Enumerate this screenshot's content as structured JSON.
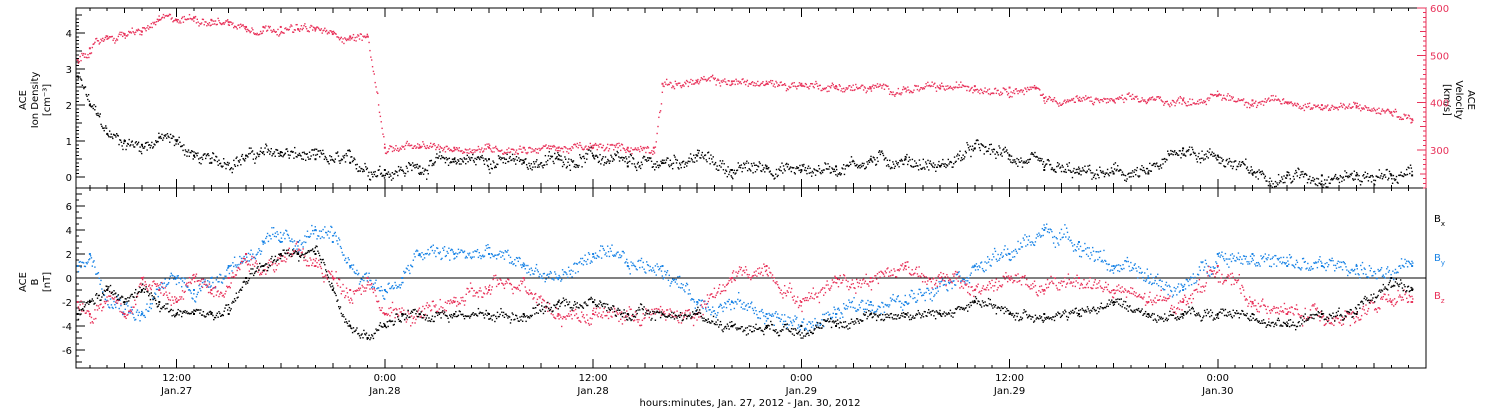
{
  "xaxis": {
    "title": "hours:minutes, Jan. 27, 2012 - Jan. 30, 2012",
    "ticks": [
      {
        "time": "12:00",
        "date": "Jan.27",
        "hours": 12
      },
      {
        "time": "0:00",
        "date": "Jan.28",
        "hours": 24
      },
      {
        "time": "12:00",
        "date": "Jan.28",
        "hours": 36
      },
      {
        "time": "0:00",
        "date": "Jan.29",
        "hours": 48
      },
      {
        "time": "12:00",
        "date": "Jan.29",
        "hours": 60
      },
      {
        "time": "0:00",
        "date": "Jan.30",
        "hours": 72
      }
    ],
    "range_hours": [
      6.2,
      84.0
    ]
  },
  "top_panel": {
    "ylabel_left": [
      "ACE",
      "Ion Density",
      "[cm⁻³]"
    ],
    "ylabel_right": [
      "ACE",
      "Velocity",
      "[km/s]"
    ],
    "left_ylim": [
      -0.3,
      4.7
    ],
    "left_ticks": [
      "0",
      "1",
      "2",
      "3",
      "4"
    ],
    "right_ylim": [
      220,
      600
    ],
    "right_ticks": [
      "300",
      "400",
      "500",
      "600"
    ],
    "colors": {
      "density": "#000000",
      "velocity": "#e8325a"
    }
  },
  "bottom_panel": {
    "ylabel": [
      "ACE",
      "B",
      "[nT]"
    ],
    "ylim": [
      -7.5,
      7.5
    ],
    "ticks": [
      "-6",
      "-4",
      "-2",
      "0",
      "2",
      "4",
      "6"
    ],
    "legend": [
      {
        "name": "B",
        "sub": "x",
        "color": "#000000"
      },
      {
        "name": "B",
        "sub": "y",
        "color": "#1a84e6"
      },
      {
        "name": "B",
        "sub": "z",
        "color": "#e8325a"
      }
    ]
  },
  "chart_data": [
    {
      "type": "scatter",
      "title": "",
      "xlabel": "hours:minutes, Jan. 27, 2012 - Jan. 30, 2012",
      "ylabel": "ACE Ion Density [cm⁻³]",
      "y2label": "ACE Velocity [km/s]",
      "series": [
        {
          "name": "Ion Density",
          "axis": "left",
          "x": [
            6.3,
            7,
            8,
            9,
            10,
            11,
            12,
            13,
            14,
            16,
            18,
            20,
            22,
            24,
            26,
            28,
            30,
            32,
            34,
            36,
            38,
            40,
            42,
            44,
            46,
            48,
            50,
            52,
            54,
            56,
            58,
            60,
            62,
            64,
            66,
            68,
            70,
            72,
            74,
            76,
            78,
            80,
            82,
            83.2
          ],
          "y": [
            2.8,
            2.0,
            1.2,
            1.0,
            0.9,
            1.1,
            1.0,
            0.6,
            0.4,
            0.6,
            0.7,
            0.5,
            0.4,
            0.2,
            0.3,
            0.5,
            0.5,
            0.4,
            0.5,
            0.6,
            0.3,
            0.4,
            0.6,
            0.2,
            0.3,
            0.2,
            0.3,
            0.5,
            0.5,
            0.3,
            0.8,
            0.6,
            0.2,
            0.1,
            0.1,
            0.1,
            0.8,
            0.6,
            0.1,
            0.05,
            0.05,
            0.05,
            0.05,
            0.05
          ]
        },
        {
          "name": "Velocity",
          "axis": "right",
          "x": [
            6.3,
            7,
            8,
            9,
            10,
            11,
            12,
            13,
            14,
            15,
            16,
            17,
            18,
            19,
            20,
            21,
            22,
            23,
            24,
            26,
            28,
            30,
            32,
            34,
            36,
            38,
            39.5,
            40,
            42,
            44,
            46,
            48,
            50,
            52,
            54,
            56,
            58,
            60,
            61.5,
            62,
            64,
            66,
            68,
            70,
            72,
            74,
            76,
            78,
            80,
            82,
            83.2
          ],
          "y": [
            490,
            515,
            540,
            545,
            550,
            575,
            575,
            580,
            575,
            570,
            560,
            560,
            560,
            555,
            555,
            545,
            540,
            540,
            305,
            305,
            305,
            305,
            305,
            305,
            305,
            305,
            305,
            440,
            445,
            445,
            440,
            440,
            435,
            430,
            430,
            430,
            435,
            432,
            430,
            410,
            405,
            405,
            405,
            405,
            415,
            405,
            400,
            395,
            390,
            380,
            365
          ]
        }
      ],
      "y_range_left": [
        -0.3,
        4.7
      ],
      "y_range_right": [
        220,
        600
      ]
    },
    {
      "type": "scatter",
      "title": "",
      "xlabel": "hours:minutes, Jan. 27, 2012 - Jan. 30, 2012",
      "ylabel": "ACE B [nT]",
      "series": [
        {
          "name": "Bx",
          "x": [
            6.3,
            7,
            8,
            9,
            10,
            11,
            12,
            13,
            14,
            15,
            16,
            17,
            18,
            19,
            20,
            21,
            22,
            23,
            24,
            25,
            26,
            28,
            30,
            32,
            34,
            36,
            38,
            40,
            42,
            44,
            46,
            48,
            50,
            52,
            54,
            56,
            58,
            60,
            62,
            64,
            66,
            68,
            70,
            72,
            74,
            76,
            78,
            80,
            82,
            83.2
          ],
          "y": [
            -3,
            -2,
            -1,
            -2,
            -1,
            -2,
            -3,
            -3,
            -3,
            -3,
            0,
            1,
            2,
            2,
            2,
            -1,
            -4,
            -5,
            -4,
            -3,
            -3,
            -3,
            -3,
            -3,
            -2,
            -2,
            -3,
            -3,
            -3,
            -4,
            -4,
            -4,
            -4,
            -3,
            -3,
            -3,
            -2,
            -3,
            -3,
            -3,
            -2,
            -3,
            -3,
            -3,
            -3,
            -4,
            -3,
            -3,
            0,
            -1
          ]
        },
        {
          "name": "By",
          "x": [
            6.3,
            7,
            8,
            9,
            10,
            11,
            12,
            13,
            14,
            15,
            16,
            17,
            18,
            19,
            20,
            21,
            22,
            23,
            24,
            25,
            26,
            28,
            30,
            32,
            34,
            36,
            38,
            40,
            42,
            44,
            46,
            48,
            50,
            52,
            54,
            56,
            58,
            60,
            62,
            64,
            66,
            68,
            70,
            72,
            74,
            76,
            78,
            80,
            82,
            83.2
          ],
          "y": [
            1,
            2,
            -1,
            -2,
            -3,
            -1,
            0,
            -1,
            0,
            1,
            2,
            3,
            3,
            3,
            4,
            3,
            1,
            0,
            -1,
            0,
            2,
            2,
            2,
            1,
            0,
            2,
            1,
            1,
            -2,
            -2,
            -3,
            -4,
            -3,
            -2,
            -2,
            0,
            1,
            2,
            4,
            3,
            1,
            0,
            -1,
            2,
            2,
            1,
            1,
            1,
            0,
            1
          ]
        },
        {
          "name": "Bz",
          "x": [
            6.3,
            7,
            8,
            9,
            10,
            11,
            12,
            13,
            14,
            15,
            16,
            17,
            18,
            19,
            20,
            21,
            22,
            23,
            24,
            25,
            26,
            28,
            30,
            32,
            34,
            36,
            38,
            40,
            42,
            44,
            46,
            48,
            50,
            52,
            54,
            56,
            58,
            60,
            62,
            64,
            66,
            68,
            70,
            72,
            74,
            76,
            78,
            80,
            82,
            83.2
          ],
          "y": [
            -2,
            -3,
            -1,
            -3,
            0,
            -1,
            -2,
            0,
            -1,
            0,
            2,
            1,
            2,
            2,
            1,
            0,
            -1,
            0,
            -3,
            -3,
            -3,
            -2,
            -1,
            0,
            -3,
            -3,
            -3,
            -3,
            -3,
            0,
            1,
            -2,
            0,
            0,
            1,
            0,
            -1,
            0,
            -1,
            0,
            -1,
            -2,
            -2,
            1,
            -2,
            -3,
            -3,
            -3,
            -2,
            -2
          ]
        }
      ],
      "y_range": [
        -7.5,
        7.5
      ]
    }
  ]
}
